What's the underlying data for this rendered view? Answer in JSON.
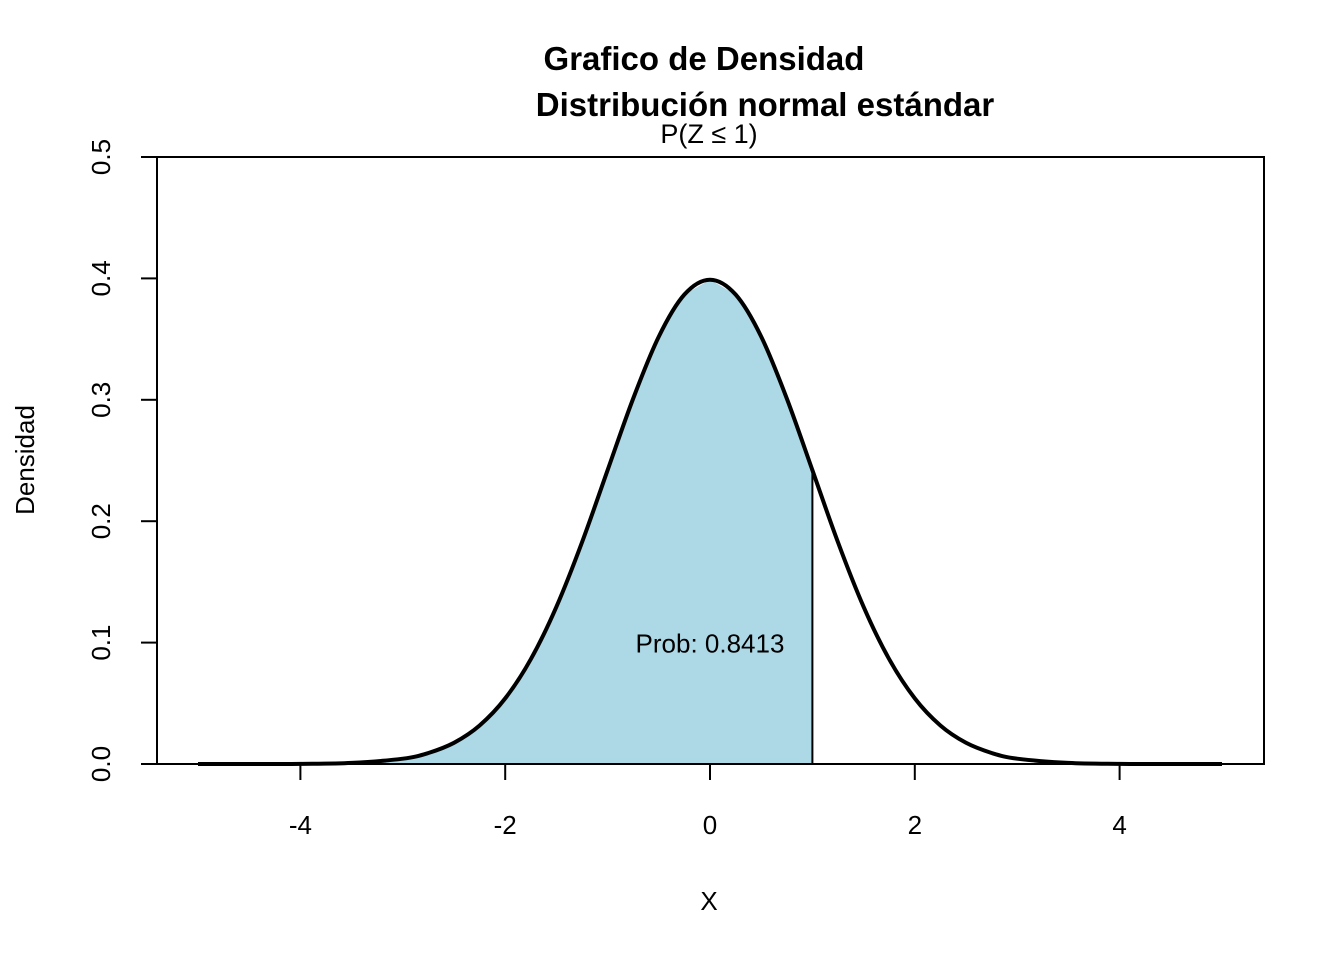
{
  "chart_data": {
    "type": "area",
    "title_line1": "Grafico de Densidad",
    "title_line2": "Distribución normal estándar",
    "subtitle": "P(Z ≤ 1)",
    "xlabel": "X",
    "ylabel": "Densidad",
    "xlim": [
      -5,
      5
    ],
    "ylim": [
      0,
      0.5
    ],
    "x_ticks": [
      -4,
      -2,
      0,
      2,
      4
    ],
    "x_tick_labels": [
      "-4",
      "-2",
      "0",
      "2",
      "4"
    ],
    "y_ticks": [
      0,
      0.1,
      0.2,
      0.3,
      0.4,
      0.5
    ],
    "y_tick_labels": [
      "0.0",
      "0.1",
      "0.2",
      "0.3",
      "0.4",
      "0.5"
    ],
    "series": [
      {
        "x": [
          -5,
          -4.5,
          -4,
          -3.5,
          -3,
          -2.75,
          -2.5,
          -2.25,
          -2,
          -1.75,
          -1.5,
          -1.25,
          -1,
          -0.75,
          -0.5,
          -0.25,
          0,
          0.25,
          0.5,
          0.75,
          1,
          1.25,
          1.5,
          1.75,
          2,
          2.25,
          2.5,
          2.75,
          3,
          3.5,
          4,
          4.5,
          5
        ],
        "y": [
          0.0,
          0.0,
          0.0001,
          0.0009,
          0.0044,
          0.0091,
          0.0175,
          0.0317,
          0.054,
          0.0863,
          0.1295,
          0.1826,
          0.242,
          0.3011,
          0.3521,
          0.3867,
          0.3989,
          0.3867,
          0.3521,
          0.3011,
          0.242,
          0.1826,
          0.1295,
          0.0863,
          0.054,
          0.0317,
          0.0175,
          0.0091,
          0.0044,
          0.0009,
          0.0001,
          0.0,
          0.0
        ]
      }
    ],
    "shaded_region": {
      "from": -5,
      "to": 1,
      "fill": "#add8e6"
    },
    "cutoff_line": {
      "x": 1,
      "y_top": 0.242
    },
    "annotation": {
      "text": "Prob: 0.8413",
      "x": 0,
      "y": 0.1
    },
    "line_color": "#000000",
    "grid": false,
    "legend": "none"
  }
}
